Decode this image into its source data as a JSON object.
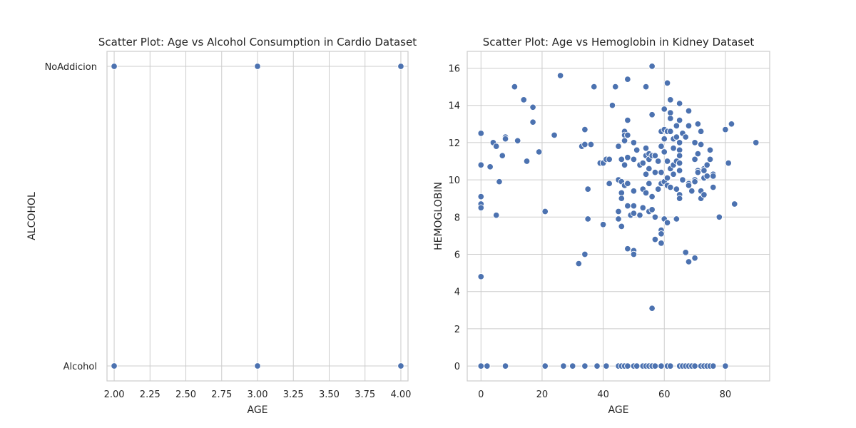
{
  "chart_data": [
    {
      "type": "scatter",
      "title": "Scatter Plot: Age vs Alcohol Consumption in Cardio Dataset",
      "xlabel": "AGE",
      "ylabel": "ALCOHOL",
      "xlim": [
        1.95,
        4.05
      ],
      "x_ticks": [
        "2.00",
        "2.25",
        "2.50",
        "2.75",
        "3.00",
        "3.25",
        "3.50",
        "3.75",
        "4.00"
      ],
      "x_tick_values": [
        2.0,
        2.25,
        2.5,
        2.75,
        3.0,
        3.25,
        3.5,
        3.75,
        4.0
      ],
      "y_categories": [
        "Alcohol",
        "NoAddicion"
      ],
      "grid": true,
      "color": "#4c72b0",
      "points": [
        {
          "x": 2,
          "y": "NoAddicion"
        },
        {
          "x": 3,
          "y": "NoAddicion"
        },
        {
          "x": 4,
          "y": "NoAddicion"
        },
        {
          "x": 2,
          "y": "Alcohol"
        },
        {
          "x": 3,
          "y": "Alcohol"
        },
        {
          "x": 4,
          "y": "Alcohol"
        }
      ]
    },
    {
      "type": "scatter",
      "title": "Scatter Plot: Age vs Hemoglobin in Kidney Dataset",
      "xlabel": "AGE",
      "ylabel": "HEMOGLOBIN",
      "xlim": [
        -4.5,
        94.5
      ],
      "ylim": [
        -0.8,
        16.9
      ],
      "x_ticks": [
        0,
        20,
        40,
        60,
        80
      ],
      "y_ticks": [
        0,
        2,
        4,
        6,
        8,
        10,
        12,
        14,
        16
      ],
      "grid": true,
      "color": "#4c72b0",
      "points": [
        [
          0,
          12.5
        ],
        [
          0,
          10.8
        ],
        [
          0,
          9.1
        ],
        [
          0,
          8.7
        ],
        [
          0,
          8.5
        ],
        [
          0,
          4.8
        ],
        [
          3,
          10.7
        ],
        [
          4,
          12.0
        ],
        [
          5,
          11.8
        ],
        [
          5,
          8.1
        ],
        [
          6,
          9.9
        ],
        [
          7,
          11.3
        ],
        [
          8,
          12.3
        ],
        [
          8,
          12.2
        ],
        [
          11,
          15.0
        ],
        [
          12,
          12.1
        ],
        [
          14,
          14.3
        ],
        [
          15,
          11.0
        ],
        [
          17,
          13.9
        ],
        [
          17,
          13.1
        ],
        [
          19,
          11.5
        ],
        [
          21,
          8.3
        ],
        [
          24,
          12.4
        ],
        [
          26,
          15.6
        ],
        [
          32,
          5.5
        ],
        [
          33,
          11.8
        ],
        [
          34,
          11.9
        ],
        [
          34,
          12.7
        ],
        [
          34,
          6.0
        ],
        [
          35,
          9.5
        ],
        [
          35,
          7.9
        ],
        [
          36,
          11.9
        ],
        [
          37,
          15.0
        ],
        [
          39,
          10.9
        ],
        [
          40,
          10.9
        ],
        [
          40,
          7.6
        ],
        [
          41,
          11.1
        ],
        [
          42,
          11.1
        ],
        [
          42,
          9.8
        ],
        [
          43,
          14.0
        ],
        [
          44,
          15.0
        ],
        [
          45,
          11.8
        ],
        [
          45,
          10.0
        ],
        [
          45,
          8.3
        ],
        [
          45,
          7.9
        ],
        [
          46,
          11.1
        ],
        [
          46,
          9.9
        ],
        [
          46,
          9.3
        ],
        [
          46,
          9.0
        ],
        [
          46,
          7.5
        ],
        [
          47,
          12.6
        ],
        [
          47,
          12.4
        ],
        [
          47,
          12.1
        ],
        [
          47,
          10.8
        ],
        [
          47,
          9.7
        ],
        [
          48,
          15.4
        ],
        [
          48,
          13.2
        ],
        [
          48,
          12.4
        ],
        [
          48,
          11.2
        ],
        [
          48,
          9.8
        ],
        [
          48,
          8.6
        ],
        [
          48,
          6.3
        ],
        [
          49,
          8.1
        ],
        [
          50,
          12.0
        ],
        [
          50,
          11.1
        ],
        [
          50,
          9.4
        ],
        [
          50,
          8.6
        ],
        [
          50,
          8.2
        ],
        [
          50,
          6.2
        ],
        [
          50,
          6.0
        ],
        [
          51,
          11.6
        ],
        [
          52,
          10.8
        ],
        [
          52,
          8.1
        ],
        [
          53,
          10.9
        ],
        [
          53,
          9.5
        ],
        [
          53,
          8.5
        ],
        [
          54,
          15.0
        ],
        [
          54,
          11.7
        ],
        [
          54,
          11.3
        ],
        [
          54,
          10.3
        ],
        [
          54,
          9.3
        ],
        [
          55,
          11.4
        ],
        [
          55,
          11.1
        ],
        [
          55,
          10.6
        ],
        [
          55,
          9.8
        ],
        [
          55,
          8.3
        ],
        [
          56,
          16.1
        ],
        [
          56,
          13.5
        ],
        [
          56,
          11.3
        ],
        [
          56,
          9.1
        ],
        [
          56,
          8.4
        ],
        [
          56,
          3.1
        ],
        [
          57,
          11.3
        ],
        [
          57,
          10.4
        ],
        [
          57,
          8.0
        ],
        [
          57,
          6.8
        ],
        [
          58,
          11.0
        ],
        [
          58,
          9.5
        ],
        [
          59,
          12.6
        ],
        [
          59,
          11.8
        ],
        [
          59,
          10.4
        ],
        [
          59,
          9.8
        ],
        [
          59,
          7.3
        ],
        [
          59,
          7.1
        ],
        [
          59,
          6.6
        ],
        [
          60,
          13.8
        ],
        [
          60,
          12.7
        ],
        [
          60,
          12.2
        ],
        [
          60,
          11.5
        ],
        [
          60,
          9.9
        ],
        [
          60,
          7.9
        ],
        [
          61,
          15.2
        ],
        [
          61,
          12.6
        ],
        [
          61,
          11.0
        ],
        [
          61,
          10.1
        ],
        [
          61,
          9.7
        ],
        [
          61,
          7.7
        ],
        [
          62,
          14.3
        ],
        [
          62,
          13.6
        ],
        [
          62,
          13.3
        ],
        [
          62,
          12.6
        ],
        [
          62,
          10.6
        ],
        [
          62,
          9.6
        ],
        [
          63,
          12.2
        ],
        [
          63,
          11.7
        ],
        [
          63,
          10.8
        ],
        [
          63,
          10.3
        ],
        [
          64,
          12.9
        ],
        [
          64,
          12.3
        ],
        [
          64,
          11.0
        ],
        [
          64,
          9.5
        ],
        [
          64,
          7.9
        ],
        [
          65,
          14.1
        ],
        [
          65,
          13.2
        ],
        [
          65,
          12.0
        ],
        [
          65,
          11.6
        ],
        [
          65,
          11.3
        ],
        [
          65,
          10.9
        ],
        [
          65,
          10.5
        ],
        [
          65,
          9.2
        ],
        [
          65,
          9.0
        ],
        [
          66,
          12.5
        ],
        [
          66,
          10.0
        ],
        [
          67,
          12.3
        ],
        [
          67,
          6.1
        ],
        [
          68,
          13.7
        ],
        [
          68,
          12.9
        ],
        [
          68,
          9.8
        ],
        [
          68,
          9.7
        ],
        [
          68,
          5.6
        ],
        [
          69,
          9.4
        ],
        [
          69,
          9.4
        ],
        [
          70,
          12.0
        ],
        [
          70,
          11.1
        ],
        [
          70,
          10.0
        ],
        [
          70,
          9.9
        ],
        [
          70,
          5.8
        ],
        [
          71,
          13.0
        ],
        [
          71,
          11.4
        ],
        [
          71,
          10.5
        ],
        [
          71,
          10.4
        ],
        [
          72,
          12.6
        ],
        [
          72,
          11.9
        ],
        [
          72,
          9.4
        ],
        [
          72,
          9.0
        ],
        [
          73,
          10.6
        ],
        [
          73,
          10.5
        ],
        [
          73,
          10.1
        ],
        [
          73,
          9.2
        ],
        [
          74,
          10.8
        ],
        [
          74,
          10.2
        ],
        [
          75,
          11.6
        ],
        [
          75,
          11.1
        ],
        [
          76,
          10.3
        ],
        [
          76,
          10.2
        ],
        [
          76,
          9.6
        ],
        [
          78,
          8.0
        ],
        [
          80,
          12.7
        ],
        [
          81,
          10.9
        ],
        [
          82,
          13.0
        ],
        [
          83,
          8.7
        ],
        [
          90,
          12.0
        ],
        [
          0,
          0
        ],
        [
          2,
          0
        ],
        [
          8,
          0
        ],
        [
          21,
          0
        ],
        [
          27,
          0
        ],
        [
          30,
          0
        ],
        [
          34,
          0
        ],
        [
          38,
          0
        ],
        [
          41,
          0
        ],
        [
          45,
          0
        ],
        [
          46,
          0
        ],
        [
          47,
          0
        ],
        [
          48,
          0
        ],
        [
          50,
          0
        ],
        [
          51,
          0
        ],
        [
          53,
          0
        ],
        [
          54,
          0
        ],
        [
          55,
          0
        ],
        [
          56,
          0
        ],
        [
          57,
          0
        ],
        [
          59,
          0
        ],
        [
          61,
          0
        ],
        [
          62,
          0
        ],
        [
          65,
          0
        ],
        [
          66,
          0
        ],
        [
          67,
          0
        ],
        [
          68,
          0
        ],
        [
          69,
          0
        ],
        [
          70,
          0
        ],
        [
          72,
          0
        ],
        [
          73,
          0
        ],
        [
          74,
          0
        ],
        [
          75,
          0
        ],
        [
          76,
          0
        ],
        [
          80,
          0
        ]
      ]
    }
  ]
}
